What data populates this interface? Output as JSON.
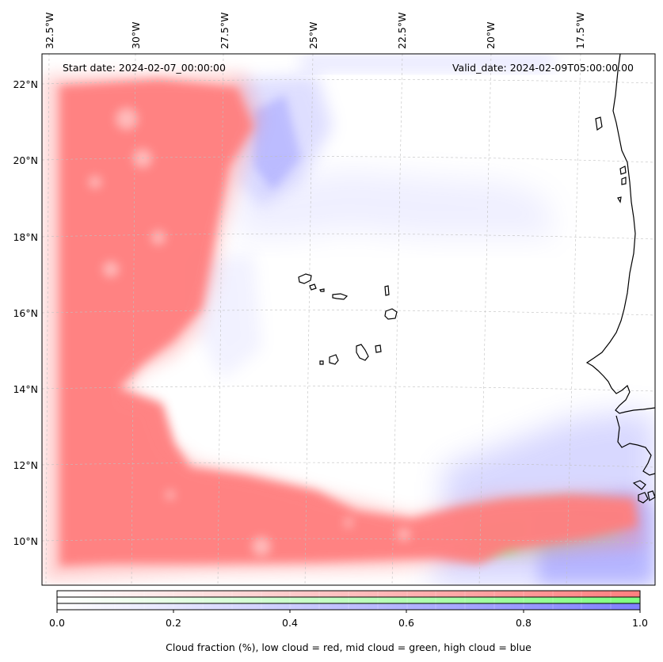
{
  "map": {
    "start_date_label": "Start date: 2024-02-07_00:00:00",
    "valid_date_label": "Valid_date: 2024-02-09T05:00:00.00",
    "lon_labels": [
      "32.5°W",
      "30°W",
      "27.5°W",
      "25°W",
      "22.5°W",
      "20°W",
      "17.5°W"
    ],
    "lat_labels": [
      "22°N",
      "20°N",
      "18°N",
      "16°N",
      "14°N",
      "12°N",
      "10°N"
    ]
  },
  "colorbar": {
    "ticks": [
      "0.0",
      "0.2",
      "0.4",
      "0.6",
      "0.8",
      "1.0"
    ],
    "label": "Cloud fraction (%), low cloud = red, mid cloud = green, high cloud = blue",
    "colors": {
      "low": "#ff7f7f",
      "mid": "#7fff7f",
      "high": "#7f7fff"
    }
  }
}
